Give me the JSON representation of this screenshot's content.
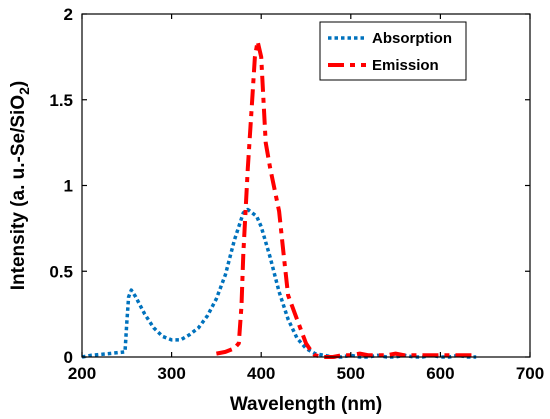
{
  "chart_data": {
    "type": "line",
    "xlabel": "Wavelength (nm)",
    "ylabel": {
      "prefix": "Intensity (a. u.-Se/SiO",
      "subscript": "2",
      "suffix": ")"
    },
    "xlim": [
      200,
      700
    ],
    "ylim": [
      0,
      2
    ],
    "xticks": [
      200,
      300,
      400,
      500,
      600,
      700
    ],
    "yticks": [
      0,
      0.5,
      1,
      1.5,
      2
    ],
    "xtick_labels": [
      "200",
      "300",
      "400",
      "500",
      "600",
      "700"
    ],
    "ytick_labels": [
      "0",
      "0.5",
      "1",
      "1.5",
      "2"
    ],
    "grid": false,
    "legend_position": "top-right",
    "series": [
      {
        "name": "Absorption",
        "color": "#0072BD",
        "style": "dotted",
        "x": [
          200,
          210,
          230,
          248,
          250,
          252,
          255,
          260,
          270,
          280,
          290,
          300,
          310,
          320,
          330,
          340,
          350,
          360,
          370,
          380,
          385,
          390,
          395,
          400,
          410,
          420,
          430,
          440,
          450,
          460,
          470,
          480,
          490,
          500,
          510,
          520,
          530,
          540,
          550,
          560,
          570,
          580,
          590,
          600,
          610,
          620,
          630,
          640
        ],
        "y": [
          0.0,
          0.01,
          0.02,
          0.03,
          0.2,
          0.35,
          0.39,
          0.35,
          0.25,
          0.17,
          0.12,
          0.1,
          0.1,
          0.13,
          0.17,
          0.24,
          0.34,
          0.48,
          0.68,
          0.84,
          0.86,
          0.84,
          0.82,
          0.76,
          0.58,
          0.38,
          0.22,
          0.11,
          0.05,
          0.02,
          0.01,
          0.0,
          0.0,
          0.01,
          0.0,
          0.0,
          0.01,
          0.0,
          0.0,
          0.01,
          0.0,
          0.0,
          0.01,
          0.0,
          0.0,
          0.01,
          0.0,
          0.0
        ]
      },
      {
        "name": "Emission",
        "color": "#FF0000",
        "style": "dashdot",
        "x": [
          350,
          360,
          370,
          375,
          378,
          380,
          385,
          390,
          393,
          396,
          400,
          405,
          410,
          420,
          425,
          430,
          440,
          450,
          455,
          460,
          470,
          480,
          490,
          500,
          510,
          520,
          530,
          540,
          550,
          560,
          570,
          580,
          590,
          600,
          610,
          620,
          630,
          640
        ],
        "y": [
          0.02,
          0.03,
          0.05,
          0.08,
          0.3,
          0.6,
          1.1,
          1.5,
          1.75,
          1.84,
          1.75,
          1.25,
          1.1,
          0.85,
          0.6,
          0.36,
          0.22,
          0.08,
          0.04,
          0.01,
          0.0,
          0.0,
          0.01,
          0.01,
          0.02,
          0.01,
          0.01,
          0.01,
          0.02,
          0.01,
          0.01,
          0.01,
          0.01,
          0.01,
          0.01,
          0.01,
          0.01,
          0.01
        ]
      }
    ]
  }
}
